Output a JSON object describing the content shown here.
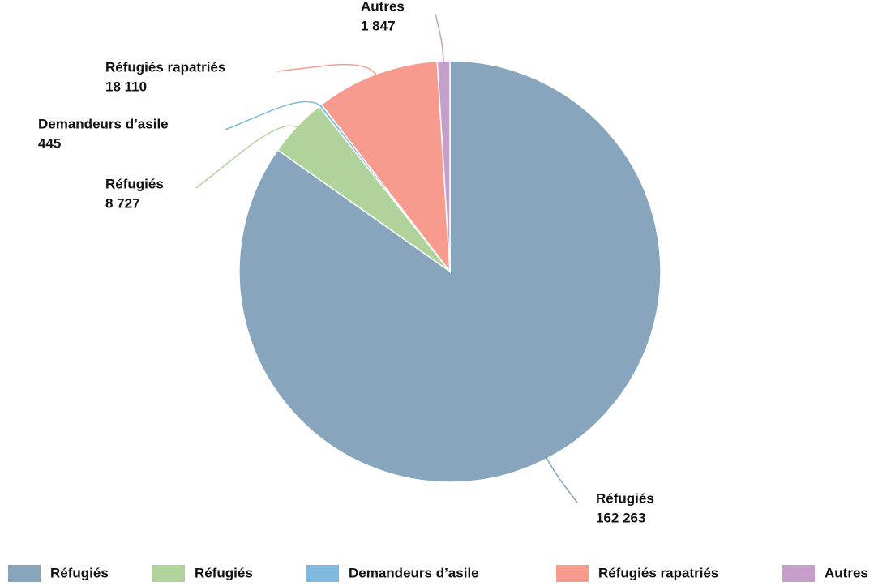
{
  "chart_data": {
    "type": "pie",
    "categories": [
      "Réfugiés",
      "Réfugiés",
      "Demandeurs d’asile",
      "Réfugiés rapatriés",
      "Autres"
    ],
    "values": [
      162263,
      8727,
      445,
      18110,
      1847
    ],
    "value_labels": [
      "162 263",
      "8 727",
      "445",
      "18 110",
      "1 847"
    ],
    "colors": [
      "#87a6bd",
      "#b0d39c",
      "#7fb9dd",
      "#f89b8f",
      "#c59fca"
    ],
    "legend": "bottom"
  }
}
